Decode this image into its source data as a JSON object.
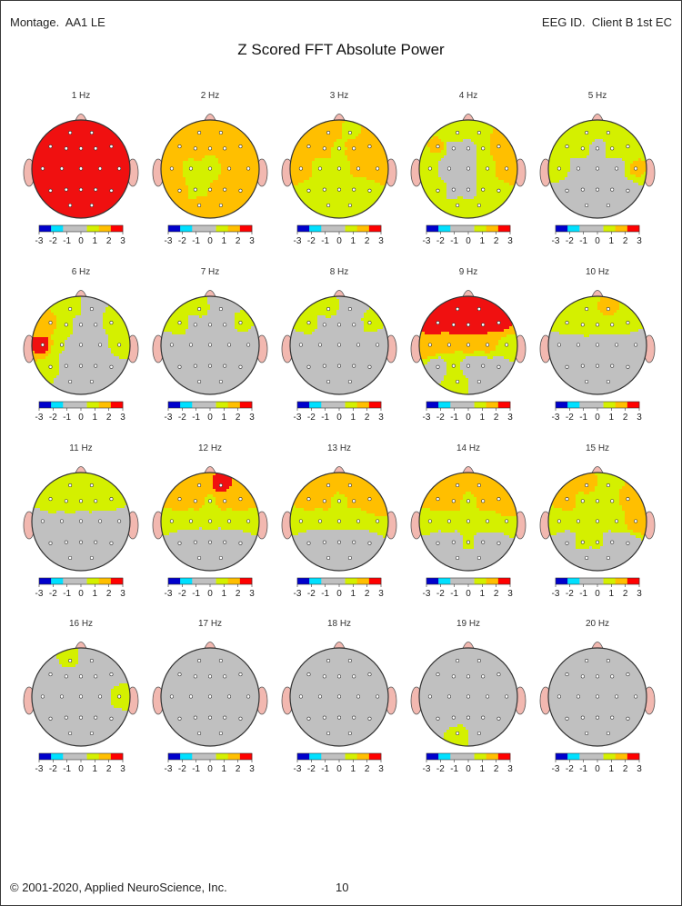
{
  "header": {
    "montage_label": "Montage.",
    "montage_value": "AA1 LE",
    "eeg_label": "EEG ID.",
    "eeg_value": "Client B 1st EC"
  },
  "title": "Z Scored FFT Absolute Power",
  "footer": {
    "copyright": "© 2001-2020, Applied NeuroScience, Inc.",
    "page_number": "10"
  },
  "colors": {
    "scale": [
      "#0000cc",
      "#00e0ff",
      "#c0c0c0",
      "#c0c0c0",
      "#d4f000",
      "#ffbf00",
      "#ff0000"
    ],
    "gray": "#c0c0c0",
    "lime": "#d4f000",
    "orange": "#ffbf00",
    "red": "#f01010",
    "ear": "#f2b8b0"
  },
  "chart_data": {
    "type": "heatmap",
    "measure": "Z Scored FFT Absolute Power",
    "scale_ticks": [
      "-3",
      "-2",
      "-1",
      "0",
      "1",
      "2",
      "3"
    ],
    "scale_range": [
      -3,
      3
    ],
    "electrodes_note": "approximate z-scores per 10-20 site",
    "maps": [
      {
        "label": "1 Hz",
        "z": {
          "Fp1": 3.3,
          "Fp2": 3.3,
          "F7": 3.3,
          "F3": 3.3,
          "Fz": 3.3,
          "F4": 3.3,
          "F8": 3.3,
          "T3": 3.3,
          "C3": 3.3,
          "Cz": 3.3,
          "C4": 3.3,
          "T4": 3.3,
          "T5": 3.3,
          "P3": 3.3,
          "Pz": 3.3,
          "P4": 3.3,
          "T6": 3.3,
          "O1": 3.3,
          "O2": 3.3
        }
      },
      {
        "label": "2 Hz",
        "z": {
          "Fp1": 3.0,
          "Fp2": 2.4,
          "F7": 3.0,
          "F3": 2.6,
          "Fz": 2.0,
          "F4": 2.3,
          "F8": 3.0,
          "T3": 3.0,
          "C3": 1.6,
          "Cz": 1.4,
          "C4": 2.4,
          "T4": 3.0,
          "T5": 2.3,
          "P3": 1.6,
          "Pz": 2.0,
          "P4": 2.5,
          "T6": 3.0,
          "O1": 2.3,
          "O2": 2.3
        }
      },
      {
        "label": "3 Hz",
        "z": {
          "Fp1": 3.0,
          "Fp2": 1.8,
          "F7": 3.0,
          "F3": 2.6,
          "Fz": 1.6,
          "F4": 2.7,
          "F8": 3.0,
          "T3": 3.0,
          "C3": 1.5,
          "Cz": 1.3,
          "C4": 2.2,
          "T4": 2.5,
          "T5": 1.6,
          "P3": 1.4,
          "Pz": 1.3,
          "P4": 1.5,
          "T6": 1.8,
          "O1": 1.4,
          "O2": 1.3
        }
      },
      {
        "label": "4 Hz",
        "z": {
          "Fp1": 1.8,
          "Fp2": 1.8,
          "F7": 2.1,
          "F3": 0.5,
          "Fz": 0.5,
          "F4": 1.6,
          "F8": 2.8,
          "T3": 1.2,
          "C3": 0.5,
          "Cz": 0.5,
          "C4": 1.6,
          "T4": 3.0,
          "T5": 1.5,
          "P3": 0.6,
          "Pz": 0.6,
          "P4": 1.3,
          "T6": 1.6,
          "O1": 1.3,
          "O2": 1.3
        }
      },
      {
        "label": "5 Hz",
        "z": {
          "Fp1": 1.8,
          "Fp2": 1.2,
          "F7": 1.6,
          "F3": 1.2,
          "Fz": 0.6,
          "F4": 1.4,
          "F8": 1.8,
          "T3": 1.6,
          "C3": 0.5,
          "Cz": 0.4,
          "C4": 0.5,
          "T4": 2.1,
          "T5": 0.5,
          "P3": 0.5,
          "Pz": 0.4,
          "P4": 0.5,
          "T6": 0.6,
          "O1": 0.4,
          "O2": 0.4
        }
      },
      {
        "label": "6 Hz",
        "z": {
          "Fp1": 1.7,
          "Fp2": 0.5,
          "F7": 2.2,
          "F3": 1.3,
          "Fz": 0.5,
          "F4": 0.5,
          "F8": 1.7,
          "T3": 3.2,
          "C3": 1.0,
          "Cz": 0.4,
          "C4": 0.5,
          "T4": 1.6,
          "T5": 1.5,
          "P3": 0.5,
          "Pz": 0.4,
          "P4": 0.4,
          "T6": 0.5,
          "O1": 0.4,
          "O2": 0.4
        }
      },
      {
        "label": "7 Hz",
        "z": {
          "Fp1": 1.3,
          "Fp2": 0.5,
          "F7": 1.6,
          "F3": 0.6,
          "Fz": 0.4,
          "F4": 0.4,
          "F8": 1.2,
          "T3": 0.6,
          "C3": 0.4,
          "Cz": 0.3,
          "C4": 0.3,
          "T4": 0.5,
          "T5": 0.4,
          "P3": 0.3,
          "Pz": 0.3,
          "P4": 0.3,
          "T6": 0.3,
          "O1": 0.3,
          "O2": 0.3
        }
      },
      {
        "label": "8 Hz",
        "z": {
          "Fp1": 1.4,
          "Fp2": 0.5,
          "F7": 1.5,
          "F3": 0.6,
          "Fz": 0.4,
          "F4": 0.4,
          "F8": 1.3,
          "T3": 0.6,
          "C3": 0.4,
          "Cz": 0.3,
          "C4": 0.3,
          "T4": 0.5,
          "T5": 0.4,
          "P3": 0.3,
          "Pz": 0.3,
          "P4": 0.3,
          "T6": 0.3,
          "O1": 0.3,
          "O2": 0.3
        }
      },
      {
        "label": "9 Hz",
        "z": {
          "Fp1": 3.4,
          "Fp2": 3.4,
          "F7": 3.3,
          "F3": 3.3,
          "Fz": 3.3,
          "F4": 3.3,
          "F8": 3.2,
          "T3": 3.0,
          "C3": 2.2,
          "Cz": 2.3,
          "C4": 2.2,
          "T4": 1.8,
          "T5": 0.5,
          "P3": 1.4,
          "Pz": 0.6,
          "P4": 0.6,
          "T6": 0.5,
          "O1": 1.4,
          "O2": 0.5
        }
      },
      {
        "label": "10 Hz",
        "z": {
          "Fp1": 1.8,
          "Fp2": 2.2,
          "F7": 1.5,
          "F3": 1.6,
          "Fz": 1.5,
          "F4": 1.5,
          "F8": 1.3,
          "T3": 0.6,
          "C3": 0.5,
          "Cz": 0.4,
          "C4": 0.4,
          "T4": 0.5,
          "T5": 0.3,
          "P3": 0.3,
          "Pz": 0.3,
          "P4": 0.3,
          "T6": 0.3,
          "O1": 0.3,
          "O2": 0.3
        }
      },
      {
        "label": "11 Hz",
        "z": {
          "Fp1": 2.0,
          "Fp2": 2.0,
          "F7": 2.0,
          "F3": 1.8,
          "Fz": 1.6,
          "F4": 1.6,
          "F8": 1.5,
          "T3": 0.6,
          "C3": 0.5,
          "Cz": 0.4,
          "C4": 0.4,
          "T4": 0.5,
          "T5": 0.3,
          "P3": 0.3,
          "Pz": 0.3,
          "P4": 0.3,
          "T6": 0.3,
          "O1": 0.3,
          "O2": 0.3
        }
      },
      {
        "label": "12 Hz",
        "z": {
          "Fp1": 2.8,
          "Fp2": 3.2,
          "F7": 2.9,
          "F3": 2.2,
          "Fz": 1.9,
          "F4": 2.2,
          "F8": 2.8,
          "T3": 1.5,
          "C3": 1.2,
          "Cz": 1.2,
          "C4": 1.2,
          "T4": 1.5,
          "T5": 0.3,
          "P3": 0.3,
          "Pz": 0.3,
          "P4": 0.3,
          "T6": 0.3,
          "O1": 0.3,
          "O2": 0.3
        }
      },
      {
        "label": "13 Hz",
        "z": {
          "Fp1": 2.4,
          "Fp2": 2.9,
          "F7": 2.6,
          "F3": 2.2,
          "Fz": 1.8,
          "F4": 2.1,
          "F8": 3.0,
          "T3": 1.5,
          "C3": 1.3,
          "Cz": 1.3,
          "C4": 1.3,
          "T4": 2.0,
          "T5": 0.3,
          "P3": 0.3,
          "Pz": 0.3,
          "P4": 0.3,
          "T6": 0.3,
          "O1": 0.3,
          "O2": 0.3
        }
      },
      {
        "label": "14 Hz",
        "z": {
          "Fp1": 2.9,
          "Fp2": 3.0,
          "F7": 3.0,
          "F3": 2.6,
          "Fz": 1.6,
          "F4": 2.2,
          "F8": 3.0,
          "T3": 1.5,
          "C3": 1.3,
          "Cz": 1.3,
          "C4": 1.4,
          "T4": 2.0,
          "T5": 0.5,
          "P3": 0.6,
          "Pz": 1.2,
          "P4": 0.6,
          "T6": 0.5,
          "O1": 0.3,
          "O2": 0.3
        }
      },
      {
        "label": "15 Hz",
        "z": {
          "Fp1": 2.4,
          "Fp2": 1.5,
          "F7": 2.9,
          "F3": 1.6,
          "Fz": 1.4,
          "F4": 1.5,
          "F8": 2.6,
          "T3": 1.3,
          "C3": 1.3,
          "Cz": 1.3,
          "C4": 1.3,
          "T4": 2.9,
          "T5": 0.5,
          "P3": 1.2,
          "Pz": 1.1,
          "P4": 0.6,
          "T6": 0.5,
          "O1": 0.3,
          "O2": 0.3
        }
      },
      {
        "label": "16 Hz",
        "z": {
          "Fp1": 1.3,
          "Fp2": 0.3,
          "F7": 0.5,
          "F3": 0.4,
          "Fz": 0.3,
          "F4": 0.3,
          "F8": 0.5,
          "T3": 0.4,
          "C3": 0.3,
          "Cz": 0.3,
          "C4": 0.3,
          "T4": 1.6,
          "T5": 0.3,
          "P3": 0.3,
          "Pz": 0.3,
          "P4": 0.3,
          "T6": 0.3,
          "O1": 0.3,
          "O2": 0.3
        }
      },
      {
        "label": "17 Hz",
        "z": {
          "Fp1": 0.3,
          "Fp2": 0.3,
          "F7": 0.3,
          "F3": 0.3,
          "Fz": 0.3,
          "F4": 0.3,
          "F8": 0.3,
          "T3": 0.3,
          "C3": 0.3,
          "Cz": 0.3,
          "C4": 0.3,
          "T4": 0.3,
          "T5": 0.3,
          "P3": 0.3,
          "Pz": 0.3,
          "P4": 0.3,
          "T6": 0.3,
          "O1": 0.3,
          "O2": 0.3
        }
      },
      {
        "label": "18 Hz",
        "z": {
          "Fp1": 0.3,
          "Fp2": 0.3,
          "F7": 0.3,
          "F3": 0.3,
          "Fz": 0.3,
          "F4": 0.3,
          "F8": 0.3,
          "T3": 0.3,
          "C3": 0.3,
          "Cz": 0.3,
          "C4": 0.3,
          "T4": 0.3,
          "T5": 0.3,
          "P3": 0.3,
          "Pz": 0.3,
          "P4": 0.3,
          "T6": 0.3,
          "O1": 0.3,
          "O2": 0.3
        }
      },
      {
        "label": "19 Hz",
        "z": {
          "Fp1": 0.3,
          "Fp2": 0.3,
          "F7": 0.3,
          "F3": 0.3,
          "Fz": 0.3,
          "F4": 0.3,
          "F8": 0.3,
          "T3": 0.3,
          "C3": 0.3,
          "Cz": 0.3,
          "C4": 0.3,
          "T4": 0.3,
          "T5": 0.3,
          "P3": 0.4,
          "Pz": 0.6,
          "P4": 0.3,
          "T6": 0.3,
          "O1": 1.5,
          "O2": 0.6
        }
      },
      {
        "label": "20 Hz",
        "z": {
          "Fp1": 0.3,
          "Fp2": 0.3,
          "F7": 0.3,
          "F3": 0.3,
          "Fz": 0.3,
          "F4": 0.3,
          "F8": 0.3,
          "T3": 0.3,
          "C3": 0.3,
          "Cz": 0.3,
          "C4": 0.3,
          "T4": 0.3,
          "T5": 0.3,
          "P3": 0.3,
          "Pz": 0.3,
          "P4": 0.3,
          "T6": 0.3,
          "O1": 0.3,
          "O2": 0.3
        }
      }
    ]
  }
}
